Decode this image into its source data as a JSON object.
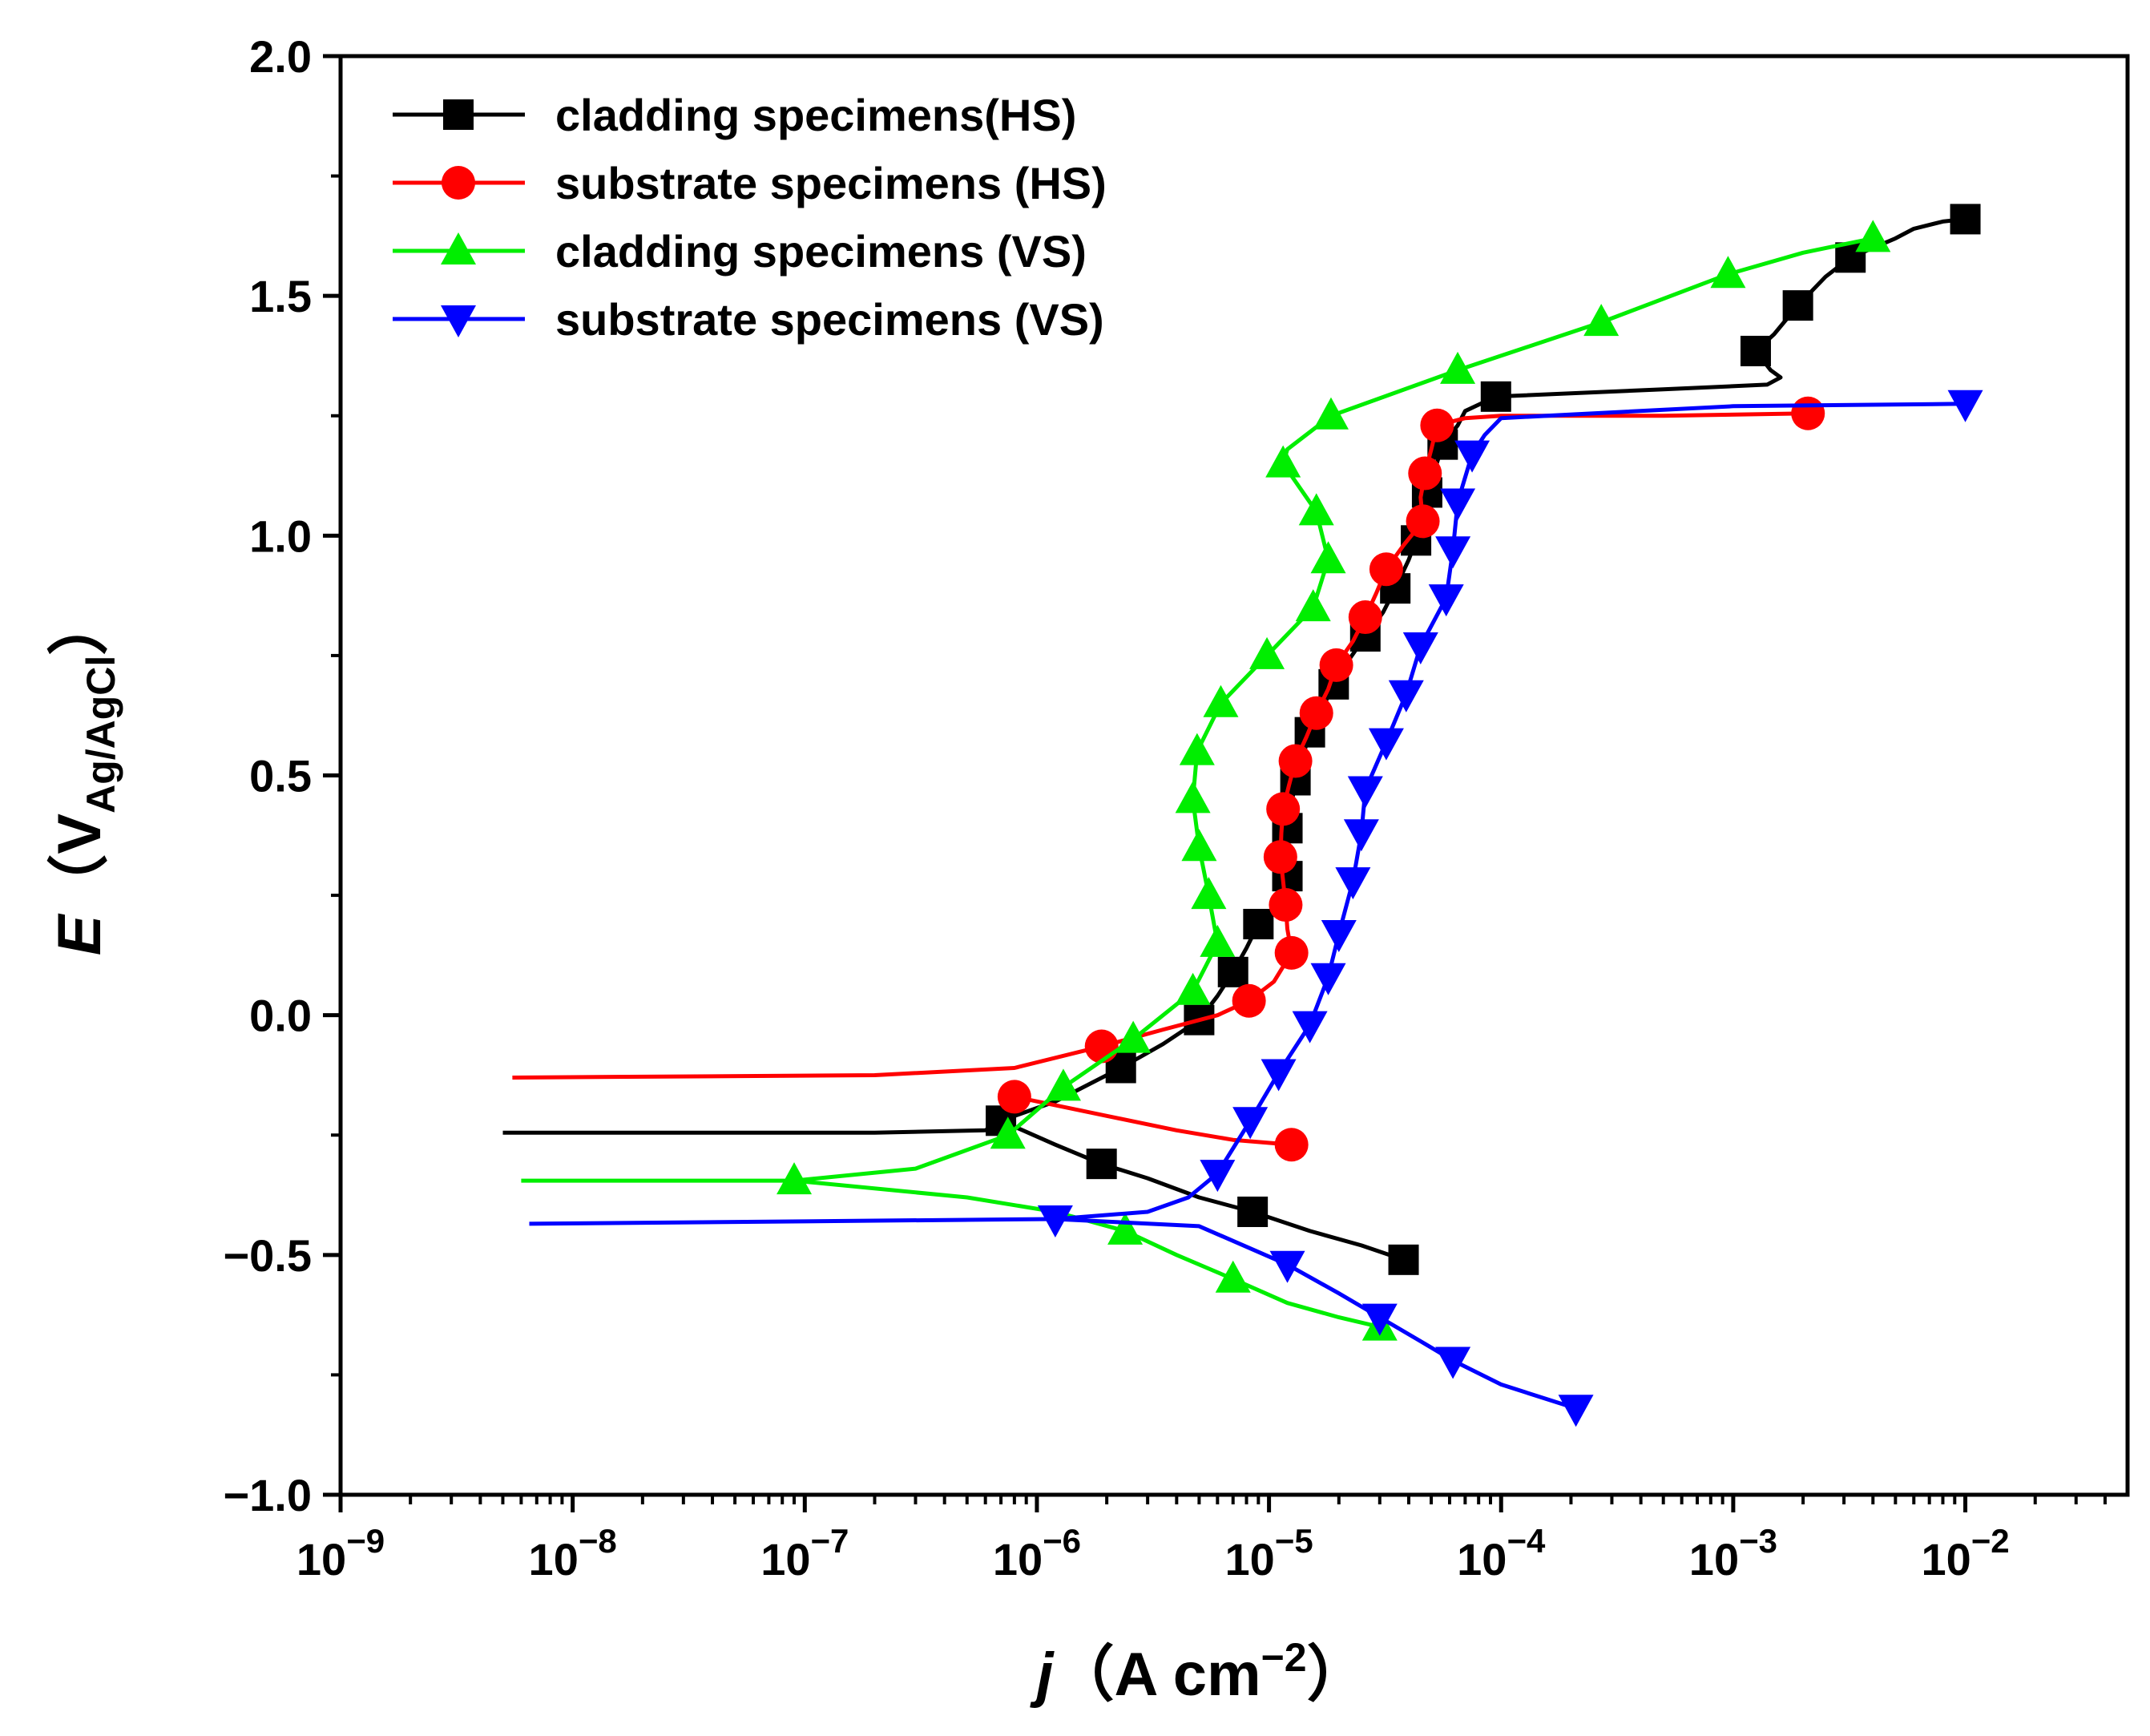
{
  "chart_data": {
    "type": "line",
    "xscale": "log",
    "xlim": [
      1e-09,
      0.05
    ],
    "ylim": [
      -1.0,
      2.0
    ],
    "grid": false,
    "legend_position": "top-left",
    "x_ticks": [
      {
        "value": 1e-09,
        "base": "10",
        "exp": "−9"
      },
      {
        "value": 1e-08,
        "base": "10",
        "exp": "−8"
      },
      {
        "value": 1e-07,
        "base": "10",
        "exp": "−7"
      },
      {
        "value": 1e-06,
        "base": "10",
        "exp": "−6"
      },
      {
        "value": 1e-05,
        "base": "10",
        "exp": "−5"
      },
      {
        "value": 0.0001,
        "base": "10",
        "exp": "−4"
      },
      {
        "value": 0.001,
        "base": "10",
        "exp": "−3"
      },
      {
        "value": 0.01,
        "base": "10",
        "exp": "−2"
      }
    ],
    "y_ticks": [
      {
        "value": 2.0,
        "label": "2.0"
      },
      {
        "value": 1.5,
        "label": "1.5"
      },
      {
        "value": 1.0,
        "label": "1.0"
      },
      {
        "value": 0.5,
        "label": "0.5"
      },
      {
        "value": 0.0,
        "label": "0.0"
      },
      {
        "value": -0.5,
        "label": "−0.5"
      },
      {
        "value": -1.0,
        "label": "−1.0"
      }
    ],
    "xlabel": {
      "symbol": "j",
      "open": "（",
      "unit": "A cm",
      "sup": "−2",
      "close": "）"
    },
    "ylabel": {
      "symbol": "E",
      "open": "（",
      "unit": "V",
      "sub": "Ag/AgCl",
      "close": "）"
    },
    "series": [
      {
        "name": "cladding specimens(HS)",
        "color": "#000000",
        "marker": "square",
        "points": [
          [
            5e-09,
            -0.245
          ],
          [
            2e-07,
            -0.245
          ],
          [
            6e-07,
            -0.24
          ],
          [
            7e-07,
            -0.22
          ],
          [
            1.2e-06,
            -0.18
          ],
          [
            2.3e-06,
            -0.11
          ],
          [
            3.5e-06,
            -0.06
          ],
          [
            5e-06,
            -0.01
          ],
          [
            6e-06,
            0.04
          ],
          [
            7e-06,
            0.09
          ],
          [
            8e-06,
            0.14
          ],
          [
            9e-06,
            0.19
          ],
          [
            1.05e-05,
            0.22
          ],
          [
            1.1e-05,
            0.24
          ],
          [
            1.2e-05,
            0.29
          ],
          [
            1.22e-05,
            0.34
          ],
          [
            1.2e-05,
            0.39
          ],
          [
            1.25e-05,
            0.44
          ],
          [
            1.3e-05,
            0.49
          ],
          [
            1.4e-05,
            0.54
          ],
          [
            1.5e-05,
            0.59
          ],
          [
            1.7e-05,
            0.64
          ],
          [
            1.9e-05,
            0.69
          ],
          [
            2.2e-05,
            0.74
          ],
          [
            2.6e-05,
            0.79
          ],
          [
            3.1e-05,
            0.84
          ],
          [
            3.5e-05,
            0.89
          ],
          [
            4e-05,
            0.95
          ],
          [
            4.3e-05,
            0.99
          ],
          [
            4.6e-05,
            1.04
          ],
          [
            4.8e-05,
            1.09
          ],
          [
            5.2e-05,
            1.14
          ],
          [
            5.6e-05,
            1.19
          ],
          [
            6.5e-05,
            1.23
          ],
          [
            7e-05,
            1.26
          ],
          [
            9.5e-05,
            1.29
          ],
          [
            0.0005,
            1.305
          ],
          [
            0.0014,
            1.315
          ],
          [
            0.0016,
            1.33
          ],
          [
            0.00145,
            1.345
          ],
          [
            0.00125,
            1.385
          ],
          [
            0.0015,
            1.42
          ],
          [
            0.0019,
            1.48
          ],
          [
            0.0025,
            1.54
          ],
          [
            0.0032,
            1.58
          ],
          [
            0.005,
            1.62
          ],
          [
            0.006,
            1.64
          ],
          [
            0.008,
            1.655
          ],
          [
            0.01,
            1.66
          ]
        ],
        "points_cathodic": [
          [
            7e-07,
            -0.22
          ],
          [
            1.2e-06,
            -0.27
          ],
          [
            1.9e-06,
            -0.31
          ],
          [
            3e-06,
            -0.34
          ],
          [
            5e-06,
            -0.38
          ],
          [
            8.5e-06,
            -0.41
          ],
          [
            1.5e-05,
            -0.45
          ],
          [
            2.5e-05,
            -0.48
          ],
          [
            3.8e-05,
            -0.51
          ]
        ],
        "markers": [
          [
            7e-07,
            -0.22
          ],
          [
            1.9e-06,
            -0.31
          ],
          [
            8.5e-06,
            -0.41
          ],
          [
            3.8e-05,
            -0.51
          ],
          [
            2.3e-06,
            -0.11
          ],
          [
            5e-06,
            -0.01
          ],
          [
            7e-06,
            0.09
          ],
          [
            9e-06,
            0.19
          ],
          [
            1.2e-05,
            0.29
          ],
          [
            1.2e-05,
            0.39
          ],
          [
            1.3e-05,
            0.49
          ],
          [
            1.5e-05,
            0.59
          ],
          [
            1.9e-05,
            0.69
          ],
          [
            2.6e-05,
            0.79
          ],
          [
            3.5e-05,
            0.89
          ],
          [
            4.3e-05,
            0.99
          ],
          [
            4.8e-05,
            1.09
          ],
          [
            5.6e-05,
            1.19
          ],
          [
            9.5e-05,
            1.29
          ],
          [
            0.00125,
            1.385
          ],
          [
            0.0019,
            1.48
          ],
          [
            0.0032,
            1.58
          ],
          [
            0.01,
            1.66
          ]
        ]
      },
      {
        "name": "substrate specimens (HS)",
        "color": "#ff0000",
        "marker": "circle",
        "points": [
          [
            5.5e-09,
            -0.13
          ],
          [
            2e-07,
            -0.125
          ],
          [
            8e-07,
            -0.11
          ],
          [
            1.9e-06,
            -0.065
          ],
          [
            3.5e-06,
            -0.03
          ],
          [
            6e-06,
            0.0
          ],
          [
            8.2e-06,
            0.03
          ],
          [
            1.05e-05,
            0.07
          ],
          [
            1.25e-05,
            0.13
          ],
          [
            1.2e-05,
            0.18
          ],
          [
            1.18e-05,
            0.23
          ],
          [
            1.15e-05,
            0.28
          ],
          [
            1.12e-05,
            0.33
          ],
          [
            1.13e-05,
            0.38
          ],
          [
            1.15e-05,
            0.43
          ],
          [
            1.22e-05,
            0.48
          ],
          [
            1.3e-05,
            0.53
          ],
          [
            1.45e-05,
            0.58
          ],
          [
            1.6e-05,
            0.63
          ],
          [
            1.8e-05,
            0.68
          ],
          [
            1.95e-05,
            0.73
          ],
          [
            2.3e-05,
            0.78
          ],
          [
            2.6e-05,
            0.83
          ],
          [
            2.9e-05,
            0.88
          ],
          [
            3.2e-05,
            0.93
          ],
          [
            3.8e-05,
            0.98
          ],
          [
            4.6e-05,
            1.03
          ],
          [
            4.5e-05,
            1.08
          ],
          [
            4.7e-05,
            1.13
          ],
          [
            5e-05,
            1.18
          ],
          [
            5.3e-05,
            1.23
          ],
          [
            7e-05,
            1.245
          ],
          [
            0.0001,
            1.25
          ],
          [
            0.0005,
            1.25
          ],
          [
            0.0021,
            1.255
          ]
        ],
        "points_cathodic": [
          [
            8e-07,
            -0.17
          ],
          [
            2e-06,
            -0.21
          ],
          [
            4e-06,
            -0.24
          ],
          [
            7e-06,
            -0.26
          ],
          [
            1.25e-05,
            -0.27
          ]
        ],
        "markers": [
          [
            8e-07,
            -0.17
          ],
          [
            1.25e-05,
            -0.27
          ],
          [
            1.9e-06,
            -0.065
          ],
          [
            8.2e-06,
            0.03
          ],
          [
            1.25e-05,
            0.13
          ],
          [
            1.18e-05,
            0.23
          ],
          [
            1.12e-05,
            0.33
          ],
          [
            1.15e-05,
            0.43
          ],
          [
            1.3e-05,
            0.53
          ],
          [
            1.6e-05,
            0.63
          ],
          [
            1.95e-05,
            0.73
          ],
          [
            2.6e-05,
            0.83
          ],
          [
            3.2e-05,
            0.93
          ],
          [
            4.6e-05,
            1.03
          ],
          [
            4.7e-05,
            1.13
          ],
          [
            5.3e-05,
            1.23
          ],
          [
            0.0021,
            1.255
          ]
        ]
      },
      {
        "name": "cladding specimens (VS)",
        "color": "#00ee00",
        "marker": "triangle-up",
        "points": [
          [
            6e-09,
            -0.345
          ],
          [
            9e-08,
            -0.345
          ],
          [
            3e-07,
            -0.32
          ],
          [
            7.5e-07,
            -0.25
          ],
          [
            1.3e-06,
            -0.15
          ],
          [
            2.6e-06,
            -0.05
          ],
          [
            4.7e-06,
            0.05
          ],
          [
            6e-06,
            0.15
          ],
          [
            5.5e-06,
            0.25
          ],
          [
            5e-06,
            0.35
          ],
          [
            4.7e-06,
            0.45
          ],
          [
            4.9e-06,
            0.55
          ],
          [
            6.2e-06,
            0.65
          ],
          [
            9.8e-06,
            0.75
          ],
          [
            1.55e-05,
            0.85
          ],
          [
            1.8e-05,
            0.95
          ],
          [
            1.6e-05,
            1.05
          ],
          [
            1.15e-05,
            1.15
          ],
          [
            1.2e-05,
            1.18
          ],
          [
            1.85e-05,
            1.25
          ],
          [
            6.5e-05,
            1.345
          ],
          [
            0.00027,
            1.445
          ],
          [
            0.00095,
            1.545
          ],
          [
            0.002,
            1.59
          ],
          [
            0.004,
            1.62
          ]
        ],
        "points_cathodic": [
          [
            9e-08,
            -0.345
          ],
          [
            5e-07,
            -0.38
          ],
          [
            1.2e-06,
            -0.41
          ],
          [
            2.4e-06,
            -0.45
          ],
          [
            4e-06,
            -0.5
          ],
          [
            7e-06,
            -0.55
          ],
          [
            1.2e-05,
            -0.6
          ],
          [
            2e-05,
            -0.63
          ],
          [
            3e-05,
            -0.65
          ]
        ],
        "markers": [
          [
            9e-08,
            -0.345
          ],
          [
            7.5e-07,
            -0.25
          ],
          [
            1.3e-06,
            -0.15
          ],
          [
            2.6e-06,
            -0.05
          ],
          [
            4.7e-06,
            0.05
          ],
          [
            6e-06,
            0.15
          ],
          [
            5.5e-06,
            0.25
          ],
          [
            5e-06,
            0.35
          ],
          [
            4.7e-06,
            0.45
          ],
          [
            4.9e-06,
            0.55
          ],
          [
            6.2e-06,
            0.65
          ],
          [
            9.8e-06,
            0.75
          ],
          [
            1.55e-05,
            0.85
          ],
          [
            1.8e-05,
            0.95
          ],
          [
            1.6e-05,
            1.05
          ],
          [
            1.15e-05,
            1.15
          ],
          [
            1.85e-05,
            1.25
          ],
          [
            6.5e-05,
            1.345
          ],
          [
            0.00027,
            1.445
          ],
          [
            0.00095,
            1.545
          ],
          [
            0.004,
            1.62
          ],
          [
            2.4e-06,
            -0.45
          ],
          [
            7e-06,
            -0.55
          ],
          [
            3e-05,
            -0.65
          ]
        ]
      },
      {
        "name": "substrate specimens (VS)",
        "color": "#0000ff",
        "marker": "triangle-down",
        "points": [
          [
            6.5e-09,
            -0.435
          ],
          [
            1.2e-06,
            -0.425
          ],
          [
            3e-06,
            -0.41
          ],
          [
            4.5e-06,
            -0.38
          ],
          [
            6e-06,
            -0.33
          ],
          [
            8.3e-06,
            -0.22
          ],
          [
            1.1e-05,
            -0.12
          ],
          [
            1.5e-05,
            -0.02
          ],
          [
            1.8e-05,
            0.08
          ],
          [
            2e-05,
            0.17
          ],
          [
            2.3e-05,
            0.28
          ],
          [
            2.5e-05,
            0.38
          ],
          [
            2.6e-05,
            0.47
          ],
          [
            3.2e-05,
            0.57
          ],
          [
            3.9e-05,
            0.67
          ],
          [
            4.5e-05,
            0.77
          ],
          [
            5.8e-05,
            0.87
          ],
          [
            6.2e-05,
            0.97
          ],
          [
            6.5e-05,
            1.07
          ],
          [
            7.5e-05,
            1.17
          ],
          [
            8.5e-05,
            1.21
          ],
          [
            0.0001,
            1.245
          ],
          [
            0.001,
            1.27
          ],
          [
            0.01,
            1.275
          ]
        ],
        "points_cathodic": [
          [
            1.2e-06,
            -0.425
          ],
          [
            5e-06,
            -0.44
          ],
          [
            1.2e-05,
            -0.52
          ],
          [
            2e-05,
            -0.58
          ],
          [
            3e-05,
            -0.63
          ],
          [
            4.5e-05,
            -0.68
          ],
          [
            6.2e-05,
            -0.72
          ],
          [
            0.0001,
            -0.77
          ],
          [
            0.00021,
            -0.82
          ]
        ],
        "markers": [
          [
            1.2e-06,
            -0.425
          ],
          [
            1.2e-05,
            -0.52
          ],
          [
            3e-05,
            -0.63
          ],
          [
            6.2e-05,
            -0.72
          ],
          [
            0.00021,
            -0.82
          ],
          [
            6e-06,
            -0.33
          ],
          [
            8.3e-06,
            -0.22
          ],
          [
            1.1e-05,
            -0.12
          ],
          [
            1.5e-05,
            -0.02
          ],
          [
            1.8e-05,
            0.08
          ],
          [
            2e-05,
            0.17
          ],
          [
            2.3e-05,
            0.28
          ],
          [
            2.5e-05,
            0.38
          ],
          [
            2.6e-05,
            0.47
          ],
          [
            3.2e-05,
            0.57
          ],
          [
            3.9e-05,
            0.67
          ],
          [
            4.5e-05,
            0.77
          ],
          [
            5.8e-05,
            0.87
          ],
          [
            6.2e-05,
            0.97
          ],
          [
            6.5e-05,
            1.07
          ],
          [
            7.5e-05,
            1.17
          ],
          [
            0.01,
            1.275
          ]
        ]
      }
    ]
  }
}
